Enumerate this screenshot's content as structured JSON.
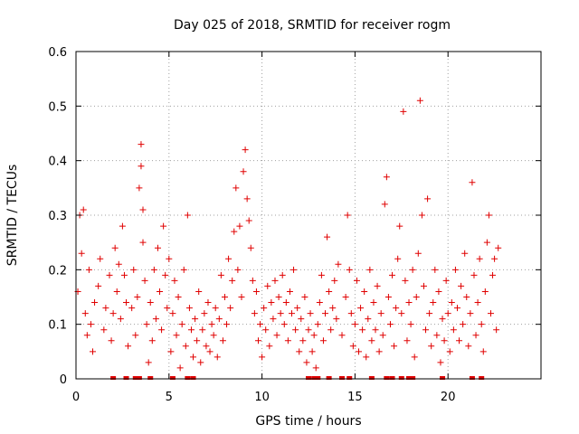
{
  "chart_data": {
    "type": "scatter",
    "title": "Day 025 of 2018, SRMTID for receiver rogm",
    "xlabel": "GPS time / hours",
    "ylabel": "SRMTID / TECUs",
    "xlim": [
      0,
      25
    ],
    "ylim": [
      0,
      0.6
    ],
    "xticks": [
      0,
      5,
      10,
      15,
      20
    ],
    "yticks": [
      0,
      0.1,
      0.2,
      0.3,
      0.4,
      0.5,
      0.6
    ],
    "grid": true,
    "marker": "+",
    "series": [
      {
        "name": "SRMTID",
        "color": "#e00000",
        "points": [
          [
            0.1,
            0.16
          ],
          [
            0.2,
            0.3
          ],
          [
            0.3,
            0.23
          ],
          [
            0.4,
            0.31
          ],
          [
            0.5,
            0.12
          ],
          [
            0.6,
            0.08
          ],
          [
            0.7,
            0.2
          ],
          [
            0.8,
            0.1
          ],
          [
            0.9,
            0.05
          ],
          [
            1.0,
            0.14
          ],
          [
            1.2,
            0.17
          ],
          [
            1.3,
            0.22
          ],
          [
            1.5,
            0.09
          ],
          [
            1.6,
            0.13
          ],
          [
            1.8,
            0.19
          ],
          [
            1.9,
            0.07
          ],
          [
            2.0,
            0.12
          ],
          [
            2.1,
            0.24
          ],
          [
            2.2,
            0.16
          ],
          [
            2.3,
            0.21
          ],
          [
            2.4,
            0.11
          ],
          [
            2.5,
            0.28
          ],
          [
            2.6,
            0.19
          ],
          [
            2.7,
            0.14
          ],
          [
            2.8,
            0.06
          ],
          [
            3.0,
            0.13
          ],
          [
            3.1,
            0.2
          ],
          [
            3.2,
            0.08
          ],
          [
            3.3,
            0.15
          ],
          [
            3.4,
            0.35
          ],
          [
            3.5,
            0.43
          ],
          [
            3.5,
            0.39
          ],
          [
            3.6,
            0.31
          ],
          [
            3.6,
            0.25
          ],
          [
            3.7,
            0.18
          ],
          [
            3.8,
            0.1
          ],
          [
            3.9,
            0.03
          ],
          [
            4.0,
            0.14
          ],
          [
            4.1,
            0.07
          ],
          [
            4.2,
            0.2
          ],
          [
            4.3,
            0.11
          ],
          [
            4.4,
            0.24
          ],
          [
            4.5,
            0.16
          ],
          [
            4.6,
            0.09
          ],
          [
            4.7,
            0.28
          ],
          [
            4.8,
            0.19
          ],
          [
            4.9,
            0.13
          ],
          [
            5.0,
            0.22
          ],
          [
            5.1,
            0.05
          ],
          [
            5.2,
            0.12
          ],
          [
            5.3,
            0.18
          ],
          [
            5.4,
            0.08
          ],
          [
            5.5,
            0.15
          ],
          [
            5.6,
            0.02
          ],
          [
            5.7,
            0.1
          ],
          [
            5.8,
            0.2
          ],
          [
            5.9,
            0.06
          ],
          [
            6.0,
            0.3
          ],
          [
            6.1,
            0.13
          ],
          [
            6.2,
            0.09
          ],
          [
            6.3,
            0.04
          ],
          [
            6.4,
            0.11
          ],
          [
            6.5,
            0.07
          ],
          [
            6.6,
            0.16
          ],
          [
            6.7,
            0.03
          ],
          [
            6.8,
            0.09
          ],
          [
            6.9,
            0.12
          ],
          [
            7.0,
            0.06
          ],
          [
            7.1,
            0.14
          ],
          [
            7.2,
            0.05
          ],
          [
            7.3,
            0.1
          ],
          [
            7.4,
            0.08
          ],
          [
            7.5,
            0.13
          ],
          [
            7.6,
            0.04
          ],
          [
            7.7,
            0.11
          ],
          [
            7.8,
            0.19
          ],
          [
            7.9,
            0.07
          ],
          [
            8.0,
            0.15
          ],
          [
            8.1,
            0.1
          ],
          [
            8.2,
            0.22
          ],
          [
            8.3,
            0.13
          ],
          [
            8.4,
            0.18
          ],
          [
            8.5,
            0.27
          ],
          [
            8.6,
            0.35
          ],
          [
            8.7,
            0.2
          ],
          [
            8.8,
            0.28
          ],
          [
            8.9,
            0.15
          ],
          [
            9.0,
            0.38
          ],
          [
            9.1,
            0.42
          ],
          [
            9.2,
            0.33
          ],
          [
            9.3,
            0.29
          ],
          [
            9.4,
            0.24
          ],
          [
            9.5,
            0.18
          ],
          [
            9.6,
            0.12
          ],
          [
            9.7,
            0.16
          ],
          [
            9.8,
            0.07
          ],
          [
            9.9,
            0.1
          ],
          [
            10.0,
            0.04
          ],
          [
            10.1,
            0.13
          ],
          [
            10.2,
            0.09
          ],
          [
            10.3,
            0.17
          ],
          [
            10.4,
            0.06
          ],
          [
            10.5,
            0.14
          ],
          [
            10.6,
            0.11
          ],
          [
            10.7,
            0.18
          ],
          [
            10.8,
            0.08
          ],
          [
            10.9,
            0.15
          ],
          [
            11.0,
            0.12
          ],
          [
            11.1,
            0.19
          ],
          [
            11.2,
            0.1
          ],
          [
            11.3,
            0.14
          ],
          [
            11.4,
            0.07
          ],
          [
            11.5,
            0.16
          ],
          [
            11.6,
            0.12
          ],
          [
            11.7,
            0.2
          ],
          [
            11.8,
            0.09
          ],
          [
            11.9,
            0.13
          ],
          [
            12.0,
            0.05
          ],
          [
            12.1,
            0.11
          ],
          [
            12.2,
            0.07
          ],
          [
            12.3,
            0.15
          ],
          [
            12.4,
            0.03
          ],
          [
            12.5,
            0.09
          ],
          [
            12.6,
            0.12
          ],
          [
            12.7,
            0.05
          ],
          [
            12.8,
            0.08
          ],
          [
            12.9,
            0.02
          ],
          [
            13.0,
            0.1
          ],
          [
            13.1,
            0.14
          ],
          [
            13.2,
            0.19
          ],
          [
            13.3,
            0.07
          ],
          [
            13.4,
            0.12
          ],
          [
            13.5,
            0.26
          ],
          [
            13.6,
            0.16
          ],
          [
            13.7,
            0.09
          ],
          [
            13.8,
            0.13
          ],
          [
            13.9,
            0.18
          ],
          [
            14.0,
            0.11
          ],
          [
            14.1,
            0.21
          ],
          [
            14.3,
            0.08
          ],
          [
            14.5,
            0.15
          ],
          [
            14.6,
            0.3
          ],
          [
            14.7,
            0.2
          ],
          [
            14.8,
            0.12
          ],
          [
            14.9,
            0.06
          ],
          [
            15.0,
            0.1
          ],
          [
            15.1,
            0.18
          ],
          [
            15.2,
            0.05
          ],
          [
            15.3,
            0.13
          ],
          [
            15.4,
            0.09
          ],
          [
            15.5,
            0.16
          ],
          [
            15.6,
            0.04
          ],
          [
            15.7,
            0.11
          ],
          [
            15.8,
            0.2
          ],
          [
            15.9,
            0.07
          ],
          [
            16.0,
            0.14
          ],
          [
            16.1,
            0.09
          ],
          [
            16.2,
            0.17
          ],
          [
            16.3,
            0.05
          ],
          [
            16.4,
            0.12
          ],
          [
            16.5,
            0.08
          ],
          [
            16.6,
            0.32
          ],
          [
            16.7,
            0.37
          ],
          [
            16.8,
            0.15
          ],
          [
            16.9,
            0.1
          ],
          [
            17.0,
            0.19
          ],
          [
            17.1,
            0.06
          ],
          [
            17.2,
            0.13
          ],
          [
            17.3,
            0.22
          ],
          [
            17.4,
            0.28
          ],
          [
            17.5,
            0.12
          ],
          [
            17.6,
            0.49
          ],
          [
            17.7,
            0.18
          ],
          [
            17.8,
            0.07
          ],
          [
            17.9,
            0.14
          ],
          [
            18.0,
            0.1
          ],
          [
            18.1,
            0.2
          ],
          [
            18.2,
            0.04
          ],
          [
            18.3,
            0.15
          ],
          [
            18.4,
            0.23
          ],
          [
            18.5,
            0.51
          ],
          [
            18.6,
            0.3
          ],
          [
            18.7,
            0.17
          ],
          [
            18.8,
            0.09
          ],
          [
            18.9,
            0.33
          ],
          [
            19.0,
            0.12
          ],
          [
            19.1,
            0.06
          ],
          [
            19.2,
            0.14
          ],
          [
            19.3,
            0.2
          ],
          [
            19.4,
            0.08
          ],
          [
            19.5,
            0.16
          ],
          [
            19.6,
            0.03
          ],
          [
            19.7,
            0.11
          ],
          [
            19.8,
            0.07
          ],
          [
            19.9,
            0.18
          ],
          [
            20.0,
            0.12
          ],
          [
            20.1,
            0.05
          ],
          [
            20.2,
            0.14
          ],
          [
            20.3,
            0.09
          ],
          [
            20.4,
            0.2
          ],
          [
            20.5,
            0.13
          ],
          [
            20.6,
            0.07
          ],
          [
            20.7,
            0.17
          ],
          [
            20.8,
            0.1
          ],
          [
            20.9,
            0.23
          ],
          [
            21.0,
            0.15
          ],
          [
            21.1,
            0.06
          ],
          [
            21.2,
            0.12
          ],
          [
            21.3,
            0.36
          ],
          [
            21.4,
            0.19
          ],
          [
            21.5,
            0.08
          ],
          [
            21.6,
            0.14
          ],
          [
            21.7,
            0.22
          ],
          [
            21.8,
            0.1
          ],
          [
            21.9,
            0.05
          ],
          [
            22.0,
            0.16
          ],
          [
            22.1,
            0.25
          ],
          [
            22.2,
            0.3
          ],
          [
            22.3,
            0.12
          ],
          [
            22.4,
            0.19
          ],
          [
            22.5,
            0.22
          ],
          [
            22.6,
            0.09
          ],
          [
            22.7,
            0.24
          ]
        ]
      }
    ],
    "zero_markers_x": [
      2.0,
      2.7,
      3.2,
      3.4,
      4.0,
      5.2,
      6.0,
      6.3,
      12.5,
      12.8,
      13.0,
      13.6,
      14.3,
      14.7,
      15.9,
      16.7,
      17.0,
      17.5,
      17.9,
      18.1,
      19.7,
      21.3,
      21.8
    ]
  }
}
